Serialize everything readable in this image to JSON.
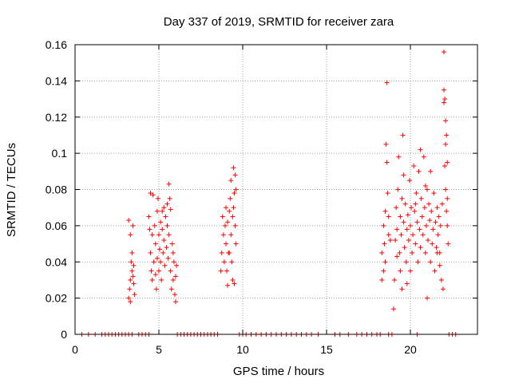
{
  "chart_data": {
    "type": "scatter",
    "title": "Day 337 of 2019, SRMTID for receiver zara",
    "xlabel": "GPS time / hours",
    "ylabel": "SRMTID / TECUs",
    "xlim": [
      0,
      24
    ],
    "ylim": [
      0,
      0.16
    ],
    "xticks": [
      0,
      5,
      10,
      15,
      20
    ],
    "xtick_labels": [
      "0",
      "5",
      "10",
      "15",
      "20"
    ],
    "yticks": [
      0,
      0.02,
      0.04,
      0.06,
      0.08,
      0.1,
      0.12,
      0.14,
      0.16
    ],
    "ytick_labels": [
      "0",
      "0.02",
      "0.04",
      "0.06",
      "0.08",
      "0.1",
      "0.12",
      "0.14",
      "0.16"
    ],
    "grid": true,
    "marker": "+",
    "color": "#ff0000",
    "series": [
      {
        "name": "SRMTID",
        "points": [
          [
            3.2,
            0.063
          ],
          [
            3.2,
            0.02
          ],
          [
            3.25,
            0.025
          ],
          [
            3.3,
            0.03
          ],
          [
            3.3,
            0.055
          ],
          [
            3.35,
            0.04
          ],
          [
            3.4,
            0.035
          ],
          [
            3.4,
            0.045
          ],
          [
            3.45,
            0.06
          ],
          [
            3.5,
            0.028
          ],
          [
            3.5,
            0.038
          ],
          [
            3.55,
            0.022
          ],
          [
            3.3,
            0.018
          ],
          [
            3.45,
            0.032
          ],
          [
            4.4,
            0.065
          ],
          [
            4.5,
            0.078
          ],
          [
            4.5,
            0.045
          ],
          [
            4.55,
            0.035
          ],
          [
            4.6,
            0.055
          ],
          [
            4.6,
            0.03
          ],
          [
            4.65,
            0.077
          ],
          [
            4.7,
            0.04
          ],
          [
            4.75,
            0.06
          ],
          [
            4.8,
            0.05
          ],
          [
            4.85,
            0.025
          ],
          [
            4.9,
            0.068
          ],
          [
            4.9,
            0.042
          ],
          [
            4.95,
            0.075
          ],
          [
            5.0,
            0.055
          ],
          [
            5.0,
            0.035
          ],
          [
            5.05,
            0.047
          ],
          [
            5.1,
            0.062
          ],
          [
            5.1,
            0.04
          ],
          [
            5.15,
            0.03
          ],
          [
            5.2,
            0.058
          ],
          [
            5.25,
            0.045
          ],
          [
            5.3,
            0.052
          ],
          [
            5.3,
            0.07
          ],
          [
            5.35,
            0.038
          ],
          [
            5.4,
            0.065
          ],
          [
            5.45,
            0.048
          ],
          [
            5.5,
            0.072
          ],
          [
            5.5,
            0.06
          ],
          [
            5.55,
            0.042
          ],
          [
            5.6,
            0.083
          ],
          [
            5.6,
            0.055
          ],
          [
            5.65,
            0.075
          ],
          [
            5.7,
            0.069
          ],
          [
            5.7,
            0.035
          ],
          [
            5.75,
            0.025
          ],
          [
            5.8,
            0.05
          ],
          [
            5.85,
            0.03
          ],
          [
            5.9,
            0.04
          ],
          [
            5.95,
            0.022
          ],
          [
            6.0,
            0.018
          ],
          [
            6.0,
            0.032
          ],
          [
            6.05,
            0.038
          ],
          [
            5.85,
            0.045
          ],
          [
            4.45,
            0.058
          ],
          [
            4.8,
            0.033
          ],
          [
            5.2,
            0.068
          ],
          [
            8.7,
            0.035
          ],
          [
            8.75,
            0.045
          ],
          [
            8.8,
            0.065
          ],
          [
            8.85,
            0.055
          ],
          [
            8.9,
            0.04
          ],
          [
            8.95,
            0.06
          ],
          [
            9.0,
            0.05
          ],
          [
            9.0,
            0.07
          ],
          [
            9.05,
            0.035
          ],
          [
            9.1,
            0.027
          ],
          [
            9.1,
            0.062
          ],
          [
            9.15,
            0.045
          ],
          [
            9.2,
            0.068
          ],
          [
            9.25,
            0.075
          ],
          [
            9.3,
            0.055
          ],
          [
            9.3,
            0.085
          ],
          [
            9.35,
            0.04
          ],
          [
            9.4,
            0.065
          ],
          [
            9.45,
            0.07
          ],
          [
            9.45,
            0.092
          ],
          [
            9.5,
            0.078
          ],
          [
            9.55,
            0.088
          ],
          [
            9.55,
            0.06
          ],
          [
            9.6,
            0.08
          ],
          [
            9.6,
            0.05
          ],
          [
            9.5,
            0.028
          ],
          [
            9.4,
            0.03
          ],
          [
            9.2,
            0.045
          ],
          [
            18.3,
            0.045
          ],
          [
            18.4,
            0.06
          ],
          [
            18.4,
            0.035
          ],
          [
            18.45,
            0.05
          ],
          [
            18.5,
            0.068
          ],
          [
            18.5,
            0.04
          ],
          [
            18.55,
            0.105
          ],
          [
            18.6,
            0.095
          ],
          [
            18.6,
            0.139
          ],
          [
            18.65,
            0.078
          ],
          [
            18.7,
            0.055
          ],
          [
            18.7,
            0.065
          ],
          [
            18.3,
            0.03
          ],
          [
            19.0,
            0.014
          ],
          [
            19.05,
            0.03
          ],
          [
            19.1,
            0.052
          ],
          [
            19.15,
            0.07
          ],
          [
            19.2,
            0.058
          ],
          [
            19.25,
            0.08
          ],
          [
            19.3,
            0.098
          ],
          [
            19.35,
            0.045
          ],
          [
            19.4,
            0.065
          ],
          [
            19.4,
            0.035
          ],
          [
            19.45,
            0.055
          ],
          [
            19.5,
            0.075
          ],
          [
            19.5,
            0.025
          ],
          [
            19.55,
            0.11
          ],
          [
            19.6,
            0.062
          ],
          [
            19.65,
            0.048
          ],
          [
            19.7,
            0.072
          ],
          [
            19.75,
            0.04
          ],
          [
            19.8,
            0.058
          ],
          [
            19.85,
            0.066
          ],
          [
            19.9,
            0.052
          ],
          [
            19.95,
            0.085
          ],
          [
            20.0,
            0.06
          ],
          [
            20.0,
            0.035
          ],
          [
            20.05,
            0.07
          ],
          [
            20.1,
            0.045
          ],
          [
            20.15,
            0.055
          ],
          [
            20.2,
            0.093
          ],
          [
            20.25,
            0.068
          ],
          [
            20.3,
            0.05
          ],
          [
            20.35,
            0.078
          ],
          [
            20.4,
            0.062
          ],
          [
            20.45,
            0.04
          ],
          [
            20.5,
            0.09
          ],
          [
            20.55,
            0.058
          ],
          [
            20.6,
            0.048
          ],
          [
            20.65,
            0.075
          ],
          [
            20.7,
            0.065
          ],
          [
            20.75,
            0.055
          ],
          [
            20.8,
            0.098
          ],
          [
            20.85,
            0.07
          ],
          [
            20.9,
            0.045
          ],
          [
            20.95,
            0.06
          ],
          [
            21.0,
            0.02
          ],
          [
            21.0,
            0.08
          ],
          [
            21.05,
            0.052
          ],
          [
            21.1,
            0.072
          ],
          [
            21.15,
            0.063
          ],
          [
            21.2,
            0.04
          ],
          [
            21.25,
            0.068
          ],
          [
            21.3,
            0.05
          ],
          [
            21.35,
            0.058
          ],
          [
            21.4,
            0.078
          ],
          [
            21.45,
            0.035
          ],
          [
            21.5,
            0.062
          ],
          [
            21.55,
            0.048
          ],
          [
            21.6,
            0.07
          ],
          [
            21.65,
            0.055
          ],
          [
            21.7,
            0.065
          ],
          [
            21.75,
            0.045
          ],
          [
            21.8,
            0.06
          ],
          [
            21.85,
            0.03
          ],
          [
            21.9,
            0.072
          ],
          [
            21.95,
            0.025
          ],
          [
            22.0,
            0.156
          ],
          [
            22.0,
            0.135
          ],
          [
            22.0,
            0.128
          ],
          [
            22.05,
            0.13
          ],
          [
            22.05,
            0.093
          ],
          [
            22.1,
            0.118
          ],
          [
            22.1,
            0.105
          ],
          [
            22.15,
            0.11
          ],
          [
            22.1,
            0.08
          ],
          [
            22.15,
            0.068
          ],
          [
            22.2,
            0.06
          ],
          [
            22.2,
            0.075
          ],
          [
            22.25,
            0.05
          ],
          [
            22.2,
            0.095
          ],
          [
            19.2,
            0.043
          ],
          [
            20.3,
            0.072
          ],
          [
            21.6,
            0.045
          ],
          [
            20.9,
            0.082
          ],
          [
            19.8,
            0.028
          ],
          [
            21.2,
            0.09
          ],
          [
            18.8,
            0.052
          ],
          [
            20.6,
            0.102
          ],
          [
            21.75,
            0.038
          ],
          [
            19.6,
            0.088
          ],
          [
            0.4,
            0
          ],
          [
            0.8,
            0
          ],
          [
            1.2,
            0
          ],
          [
            1.6,
            0
          ],
          [
            1.8,
            0
          ],
          [
            2.0,
            0
          ],
          [
            2.2,
            0
          ],
          [
            2.4,
            0
          ],
          [
            2.6,
            0
          ],
          [
            2.8,
            0
          ],
          [
            3.0,
            0
          ],
          [
            3.2,
            0
          ],
          [
            3.4,
            0
          ],
          [
            3.8,
            0
          ],
          [
            4.0,
            0
          ],
          [
            4.2,
            0
          ],
          [
            4.4,
            0
          ],
          [
            6.1,
            0
          ],
          [
            6.3,
            0
          ],
          [
            6.5,
            0
          ],
          [
            6.7,
            0
          ],
          [
            6.9,
            0
          ],
          [
            7.1,
            0
          ],
          [
            7.3,
            0
          ],
          [
            7.5,
            0
          ],
          [
            7.7,
            0
          ],
          [
            7.9,
            0
          ],
          [
            8.1,
            0
          ],
          [
            8.3,
            0
          ],
          [
            8.5,
            0
          ],
          [
            9.8,
            0
          ],
          [
            10.0,
            0
          ],
          [
            10.2,
            0
          ],
          [
            10.5,
            0
          ],
          [
            10.8,
            0
          ],
          [
            11.1,
            0
          ],
          [
            11.4,
            0
          ],
          [
            11.7,
            0
          ],
          [
            12.0,
            0
          ],
          [
            12.3,
            0
          ],
          [
            12.6,
            0
          ],
          [
            12.9,
            0
          ],
          [
            13.2,
            0
          ],
          [
            13.5,
            0
          ],
          [
            13.8,
            0
          ],
          [
            14.1,
            0
          ],
          [
            14.5,
            0
          ],
          [
            15.5,
            0
          ],
          [
            15.8,
            0
          ],
          [
            16.3,
            0
          ],
          [
            16.8,
            0
          ],
          [
            17.1,
            0
          ],
          [
            17.4,
            0
          ],
          [
            17.7,
            0
          ],
          [
            18.0,
            0
          ],
          [
            18.2,
            0
          ],
          [
            18.7,
            0
          ],
          [
            18.9,
            0
          ],
          [
            20.4,
            0
          ],
          [
            22.3,
            0
          ],
          [
            22.5,
            0
          ],
          [
            22.7,
            0
          ]
        ]
      }
    ]
  }
}
